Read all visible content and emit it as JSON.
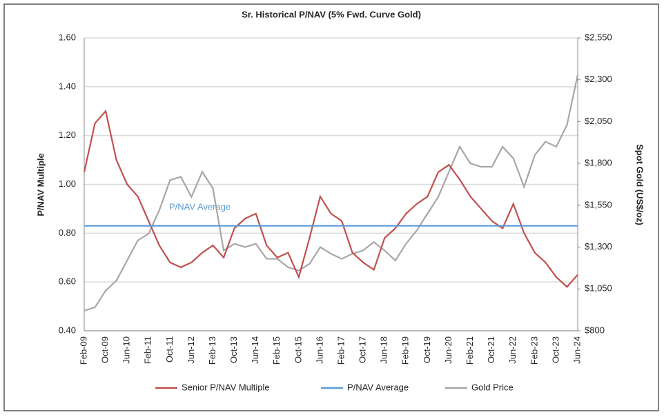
{
  "chart_data": {
    "type": "line",
    "title": "Sr. Historical  P/NAV (5% Fwd. Curve Gold)",
    "y_label": "P/NAV Multiple",
    "y2_label": "Spot Gold (US$/oz)",
    "annotation": "P/NAV Average",
    "categories": [
      "Feb-09",
      null,
      "Oct-09",
      null,
      "Jun-10",
      null,
      "Feb-11",
      null,
      "Oct-11",
      null,
      "Jun-12",
      null,
      "Feb-13",
      null,
      "Oct-13",
      null,
      "Jun-14",
      null,
      "Feb-15",
      null,
      "Oct-15",
      null,
      "Jun-16",
      null,
      "Feb-17",
      null,
      "Oct-17",
      null,
      "Jun-18",
      null,
      "Feb-19",
      null,
      "Oct-19",
      null,
      "Jun-20",
      null,
      "Feb-21",
      null,
      "Oct-21",
      null,
      "Jun-22",
      null,
      "Feb-23",
      null,
      "Oct-23",
      null,
      "Jun-24"
    ],
    "series": [
      {
        "name": "Senior P/NAV Multiple",
        "color": "#c0504d",
        "values": [
          1.05,
          1.25,
          1.3,
          1.1,
          1.0,
          0.95,
          0.85,
          0.75,
          0.68,
          0.66,
          0.68,
          0.72,
          0.75,
          0.7,
          0.82,
          0.86,
          0.88,
          0.75,
          0.7,
          0.72,
          0.62,
          0.78,
          0.95,
          0.88,
          0.85,
          0.72,
          0.68,
          0.65,
          0.78,
          0.82,
          0.88,
          0.92,
          0.95,
          1.05,
          1.08,
          1.02,
          0.95,
          0.9,
          0.85,
          0.82,
          0.92,
          0.8,
          0.72,
          0.68,
          0.62,
          0.58,
          0.63
        ]
      },
      {
        "name": "P/NAV Average",
        "color": "#5b9bd5",
        "values": [
          0.83,
          0.83,
          0.83,
          0.83,
          0.83,
          0.83,
          0.83,
          0.83,
          0.83,
          0.83,
          0.83,
          0.83,
          0.83,
          0.83,
          0.83,
          0.83,
          0.83,
          0.83,
          0.83,
          0.83,
          0.83,
          0.83,
          0.83,
          0.83,
          0.83,
          0.83,
          0.83,
          0.83,
          0.83,
          0.83,
          0.83,
          0.83,
          0.83,
          0.83,
          0.83,
          0.83,
          0.83,
          0.83,
          0.83,
          0.83,
          0.83,
          0.83,
          0.83,
          0.83,
          0.83,
          0.83,
          0.83
        ]
      },
      {
        "name": "Gold Price",
        "color": "#a6a6a6",
        "axis": "y2",
        "values": [
          920,
          940,
          1040,
          1100,
          1220,
          1340,
          1380,
          1520,
          1700,
          1720,
          1600,
          1750,
          1650,
          1280,
          1320,
          1300,
          1320,
          1230,
          1230,
          1180,
          1160,
          1200,
          1300,
          1260,
          1230,
          1260,
          1280,
          1330,
          1280,
          1220,
          1320,
          1400,
          1500,
          1600,
          1750,
          1900,
          1800,
          1780,
          1780,
          1900,
          1830,
          1660,
          1850,
          1930,
          1900,
          2030,
          2330
        ]
      }
    ],
    "ylim": [
      0.4,
      1.6
    ],
    "yticks": [
      {
        "value": 0.4,
        "label": "0.40"
      },
      {
        "value": 0.6,
        "label": "0.60"
      },
      {
        "value": 0.8,
        "label": "0.80"
      },
      {
        "value": 1.0,
        "label": "1.00"
      },
      {
        "value": 1.2,
        "label": "1.20"
      },
      {
        "value": 1.4,
        "label": "1.40"
      },
      {
        "value": 1.6,
        "label": "1.60"
      }
    ],
    "y2lim": [
      800,
      2550
    ],
    "y2ticks": [
      {
        "value": 800,
        "label": "$800"
      },
      {
        "value": 1050,
        "label": "$1,050"
      },
      {
        "value": 1300,
        "label": "$1,300"
      },
      {
        "value": 1550,
        "label": "$1,550"
      },
      {
        "value": 1800,
        "label": "$1,800"
      },
      {
        "value": 2050,
        "label": "$2,050"
      },
      {
        "value": 2300,
        "label": "$2,300"
      },
      {
        "value": 2550,
        "label": "$2,550"
      }
    ],
    "grid": true
  }
}
